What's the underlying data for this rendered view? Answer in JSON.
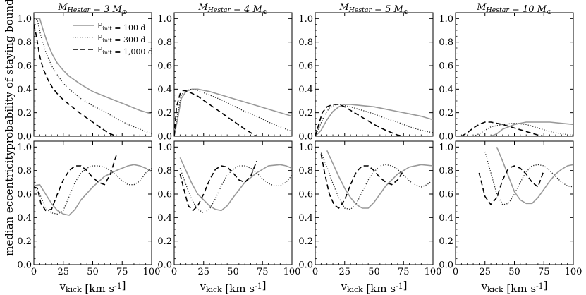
{
  "figure": {
    "xlabel": "v_kick [km s^-1]",
    "ylabel_top": "probability of staying bound",
    "ylabel_bottom": "median eccentricity"
  },
  "legend": {
    "entries": [
      {
        "label": "P_init = 100 d",
        "style": "solid",
        "color": "#999999"
      },
      {
        "label": "P_init = 300 d",
        "style": "dotted",
        "color": "#333333"
      },
      {
        "label": "P_init = 1,000 d",
        "style": "dashed",
        "color": "#000000"
      }
    ]
  },
  "chart_data": [
    {
      "type": "line",
      "row": "top",
      "panel": 0,
      "title": "M_Hestar = 3 M_⊙",
      "xlim": [
        0,
        100
      ],
      "ylim": [
        0,
        1.05
      ],
      "xticks": [
        0,
        25,
        50,
        75,
        100
      ],
      "yticks": [
        0.0,
        0.2,
        0.4,
        0.6,
        0.8,
        1.0
      ],
      "xlabel": "v_kick [km s^-1]",
      "ylabel": "probability of staying bound",
      "series": [
        {
          "name": "P_init = 100 d",
          "style": "solid",
          "x": [
            0,
            5,
            8,
            12,
            16,
            20,
            25,
            30,
            40,
            50,
            60,
            70,
            80,
            90,
            100
          ],
          "y": [
            1.0,
            1.0,
            0.9,
            0.78,
            0.69,
            0.62,
            0.56,
            0.51,
            0.44,
            0.38,
            0.34,
            0.3,
            0.26,
            0.22,
            0.19
          ]
        },
        {
          "name": "P_init = 300 d",
          "style": "dotted",
          "x": [
            0,
            3,
            6,
            10,
            15,
            20,
            25,
            30,
            40,
            50,
            60,
            70,
            80,
            90,
            100
          ],
          "y": [
            1.0,
            0.99,
            0.85,
            0.72,
            0.6,
            0.52,
            0.45,
            0.4,
            0.32,
            0.26,
            0.21,
            0.15,
            0.1,
            0.06,
            0.02
          ]
        },
        {
          "name": "P_init = 1,000 d",
          "style": "dashed",
          "x": [
            0,
            2,
            5,
            8,
            12,
            16,
            20,
            25,
            30,
            40,
            50,
            60,
            65,
            70,
            75
          ],
          "y": [
            0.95,
            0.86,
            0.68,
            0.57,
            0.48,
            0.41,
            0.36,
            0.31,
            0.27,
            0.19,
            0.12,
            0.05,
            0.02,
            0.0,
            0.0
          ]
        }
      ]
    },
    {
      "type": "line",
      "row": "top",
      "panel": 1,
      "title": "M_Hestar = 4 M_⊙",
      "xlim": [
        0,
        100
      ],
      "ylim": [
        0,
        1.05
      ],
      "xticks": [
        0,
        25,
        50,
        75,
        100
      ],
      "yticks": [
        0.0,
        0.2,
        0.4,
        0.6,
        0.8,
        1.0
      ],
      "series": [
        {
          "name": "P_init = 100 d",
          "style": "solid",
          "x": [
            0,
            3,
            6,
            10,
            15,
            20,
            30,
            40,
            50,
            60,
            70,
            80,
            90,
            100
          ],
          "y": [
            0.0,
            0.15,
            0.32,
            0.38,
            0.4,
            0.4,
            0.38,
            0.35,
            0.32,
            0.29,
            0.26,
            0.23,
            0.2,
            0.17
          ]
        },
        {
          "name": "P_init = 300 d",
          "style": "dotted",
          "x": [
            0,
            3,
            6,
            10,
            15,
            20,
            30,
            40,
            50,
            60,
            70,
            80,
            90,
            100
          ],
          "y": [
            0.0,
            0.2,
            0.35,
            0.39,
            0.4,
            0.39,
            0.35,
            0.31,
            0.26,
            0.21,
            0.17,
            0.12,
            0.08,
            0.04
          ]
        },
        {
          "name": "P_init = 1,000 d",
          "style": "dashed",
          "x": [
            0,
            2,
            5,
            8,
            12,
            16,
            20,
            30,
            40,
            50,
            60,
            70,
            75
          ],
          "y": [
            0.0,
            0.25,
            0.36,
            0.39,
            0.38,
            0.36,
            0.34,
            0.27,
            0.2,
            0.13,
            0.06,
            0.0,
            0.0
          ]
        }
      ]
    },
    {
      "type": "line",
      "row": "top",
      "panel": 2,
      "title": "M_Hestar = 5 M_⊙",
      "xlim": [
        0,
        100
      ],
      "ylim": [
        0,
        1.05
      ],
      "xticks": [
        0,
        25,
        50,
        75,
        100
      ],
      "yticks": [
        0.0,
        0.2,
        0.4,
        0.6,
        0.8,
        1.0
      ],
      "series": [
        {
          "name": "P_init = 100 d",
          "style": "solid",
          "x": [
            0,
            5,
            10,
            15,
            20,
            25,
            30,
            40,
            50,
            60,
            70,
            80,
            90,
            100
          ],
          "y": [
            0.0,
            0.05,
            0.14,
            0.21,
            0.25,
            0.27,
            0.27,
            0.26,
            0.25,
            0.23,
            0.21,
            0.19,
            0.17,
            0.14
          ]
        },
        {
          "name": "P_init = 300 d",
          "style": "dotted",
          "x": [
            0,
            4,
            8,
            12,
            16,
            20,
            25,
            30,
            40,
            50,
            60,
            70,
            80,
            90,
            100
          ],
          "y": [
            0.0,
            0.09,
            0.18,
            0.24,
            0.26,
            0.27,
            0.26,
            0.25,
            0.22,
            0.19,
            0.15,
            0.12,
            0.08,
            0.05,
            0.03
          ]
        },
        {
          "name": "P_init = 1,000 d",
          "style": "dashed",
          "x": [
            0,
            3,
            6,
            10,
            15,
            20,
            25,
            30,
            40,
            50,
            60,
            70,
            75
          ],
          "y": [
            0.0,
            0.1,
            0.2,
            0.25,
            0.27,
            0.27,
            0.25,
            0.22,
            0.16,
            0.1,
            0.05,
            0.01,
            0.0
          ]
        }
      ]
    },
    {
      "type": "line",
      "row": "top",
      "panel": 3,
      "title": "M_Hestar = 10 M_⊙",
      "xlim": [
        0,
        100
      ],
      "ylim": [
        0,
        1.05
      ],
      "xticks": [
        0,
        25,
        50,
        75,
        100
      ],
      "yticks": [
        0.0,
        0.2,
        0.4,
        0.6,
        0.8,
        1.0
      ],
      "series": [
        {
          "name": "P_init = 100 d",
          "style": "solid",
          "x": [
            30,
            35,
            40,
            50,
            60,
            70,
            80,
            90,
            100
          ],
          "y": [
            0.0,
            0.02,
            0.06,
            0.1,
            0.12,
            0.12,
            0.12,
            0.11,
            0.1
          ]
        },
        {
          "name": "P_init = 300 d",
          "style": "dotted",
          "x": [
            15,
            20,
            25,
            30,
            40,
            50,
            60,
            70,
            80,
            90,
            100
          ],
          "y": [
            0.0,
            0.02,
            0.05,
            0.08,
            0.1,
            0.11,
            0.1,
            0.07,
            0.04,
            0.02,
            0.01
          ]
        },
        {
          "name": "P_init = 1,000 d",
          "style": "dashed",
          "x": [
            5,
            10,
            15,
            20,
            25,
            30,
            35,
            40,
            50,
            60,
            70,
            75
          ],
          "y": [
            0.0,
            0.03,
            0.07,
            0.1,
            0.12,
            0.12,
            0.11,
            0.1,
            0.07,
            0.04,
            0.01,
            0.0
          ]
        }
      ]
    },
    {
      "type": "line",
      "row": "bottom",
      "panel": 0,
      "xlim": [
        0,
        100
      ],
      "ylim": [
        0,
        1.05
      ],
      "xticks": [
        0,
        25,
        50,
        75,
        100
      ],
      "yticks": [
        0.0,
        0.2,
        0.4,
        0.6,
        0.8,
        1.0
      ],
      "xlabel": "v_kick [km s^-1]",
      "ylabel": "median eccentricity",
      "series": [
        {
          "name": "P_init = 100 d",
          "style": "solid",
          "x": [
            0,
            5,
            10,
            15,
            20,
            25,
            30,
            35,
            40,
            50,
            60,
            70,
            80,
            85,
            90,
            95,
            100
          ],
          "y": [
            0.67,
            0.68,
            0.6,
            0.52,
            0.46,
            0.43,
            0.42,
            0.47,
            0.55,
            0.66,
            0.75,
            0.8,
            0.84,
            0.85,
            0.84,
            0.82,
            0.79
          ]
        },
        {
          "name": "P_init = 300 d",
          "style": "dotted",
          "x": [
            0,
            5,
            10,
            15,
            20,
            25,
            30,
            35,
            40,
            45,
            50,
            55,
            60,
            65,
            70,
            75,
            80,
            85,
            90,
            95,
            100
          ],
          "y": [
            0.67,
            0.6,
            0.48,
            0.44,
            0.43,
            0.46,
            0.58,
            0.7,
            0.78,
            0.82,
            0.84,
            0.84,
            0.83,
            0.8,
            0.76,
            0.71,
            0.68,
            0.68,
            0.71,
            0.78,
            0.82
          ]
        },
        {
          "name": "P_init = 1,000 d",
          "style": "dashed",
          "x": [
            0,
            3,
            6,
            10,
            15,
            20,
            25,
            30,
            35,
            40,
            45,
            50,
            55,
            60,
            65,
            70
          ],
          "y": [
            0.66,
            0.65,
            0.52,
            0.46,
            0.47,
            0.6,
            0.72,
            0.8,
            0.84,
            0.84,
            0.8,
            0.74,
            0.7,
            0.68,
            0.77,
            0.93
          ]
        }
      ]
    },
    {
      "type": "line",
      "row": "bottom",
      "panel": 1,
      "xlim": [
        0,
        100
      ],
      "ylim": [
        0,
        1.05
      ],
      "xticks": [
        0,
        25,
        50,
        75,
        100
      ],
      "yticks": [
        0.0,
        0.2,
        0.4,
        0.6,
        0.8,
        1.0
      ],
      "series": [
        {
          "name": "P_init = 100 d",
          "style": "solid",
          "x": [
            5,
            10,
            15,
            20,
            25,
            30,
            35,
            40,
            45,
            50,
            60,
            70,
            80,
            90,
            95,
            100
          ],
          "y": [
            0.91,
            0.8,
            0.69,
            0.6,
            0.55,
            0.5,
            0.47,
            0.46,
            0.5,
            0.57,
            0.7,
            0.78,
            0.84,
            0.85,
            0.84,
            0.82
          ]
        },
        {
          "name": "P_init = 300 d",
          "style": "dotted",
          "x": [
            5,
            10,
            15,
            20,
            25,
            30,
            35,
            40,
            45,
            50,
            55,
            60,
            65,
            70,
            75,
            80,
            85,
            90,
            95,
            100
          ],
          "y": [
            0.82,
            0.68,
            0.55,
            0.47,
            0.44,
            0.47,
            0.56,
            0.67,
            0.76,
            0.81,
            0.84,
            0.84,
            0.82,
            0.78,
            0.73,
            0.69,
            0.67,
            0.67,
            0.7,
            0.76
          ]
        },
        {
          "name": "P_init = 1,000 d",
          "style": "dashed",
          "x": [
            5,
            8,
            12,
            16,
            20,
            25,
            30,
            35,
            40,
            45,
            50,
            55,
            60,
            65,
            70
          ],
          "y": [
            0.77,
            0.65,
            0.5,
            0.46,
            0.5,
            0.6,
            0.72,
            0.81,
            0.84,
            0.83,
            0.78,
            0.72,
            0.7,
            0.75,
            0.88
          ]
        }
      ]
    },
    {
      "type": "line",
      "row": "bottom",
      "panel": 2,
      "xlim": [
        0,
        100
      ],
      "ylim": [
        0,
        1.05
      ],
      "xticks": [
        0,
        25,
        50,
        75,
        100
      ],
      "yticks": [
        0.0,
        0.2,
        0.4,
        0.6,
        0.8,
        1.0
      ],
      "series": [
        {
          "name": "P_init = 100 d",
          "style": "solid",
          "x": [
            10,
            15,
            20,
            25,
            30,
            35,
            40,
            45,
            50,
            55,
            60,
            70,
            80,
            90,
            100
          ],
          "y": [
            0.97,
            0.86,
            0.75,
            0.65,
            0.57,
            0.51,
            0.48,
            0.48,
            0.53,
            0.6,
            0.67,
            0.77,
            0.83,
            0.85,
            0.84
          ]
        },
        {
          "name": "P_init = 300 d",
          "style": "dotted",
          "x": [
            5,
            10,
            15,
            20,
            25,
            30,
            35,
            40,
            45,
            50,
            55,
            60,
            65,
            70,
            75,
            80,
            85,
            90,
            95,
            100
          ],
          "y": [
            0.95,
            0.83,
            0.69,
            0.57,
            0.48,
            0.47,
            0.52,
            0.62,
            0.72,
            0.79,
            0.84,
            0.85,
            0.84,
            0.81,
            0.76,
            0.71,
            0.68,
            0.66,
            0.68,
            0.72
          ]
        },
        {
          "name": "P_init = 1,000 d",
          "style": "dashed",
          "x": [
            5,
            8,
            12,
            16,
            20,
            25,
            30,
            35,
            40,
            45,
            50,
            55,
            60,
            65,
            70,
            75
          ],
          "y": [
            0.94,
            0.78,
            0.6,
            0.51,
            0.48,
            0.55,
            0.68,
            0.79,
            0.84,
            0.84,
            0.8,
            0.74,
            0.7,
            0.68,
            0.72,
            0.8
          ]
        }
      ]
    },
    {
      "type": "line",
      "row": "bottom",
      "panel": 3,
      "xlim": [
        0,
        100
      ],
      "ylim": [
        0,
        1.05
      ],
      "xticks": [
        0,
        25,
        50,
        75,
        100
      ],
      "yticks": [
        0.0,
        0.2,
        0.4,
        0.6,
        0.8,
        1.0
      ],
      "series": [
        {
          "name": "P_init = 100 d",
          "style": "solid",
          "x": [
            35,
            40,
            45,
            50,
            55,
            60,
            65,
            70,
            75,
            80,
            85,
            90,
            95,
            100
          ],
          "y": [
            1.0,
            0.88,
            0.75,
            0.62,
            0.55,
            0.52,
            0.52,
            0.57,
            0.64,
            0.71,
            0.77,
            0.81,
            0.84,
            0.85
          ]
        },
        {
          "name": "P_init = 300 d",
          "style": "dotted",
          "x": [
            25,
            30,
            35,
            40,
            45,
            50,
            55,
            60,
            65,
            70,
            75,
            80,
            85,
            90,
            95,
            100
          ],
          "y": [
            0.96,
            0.78,
            0.6,
            0.51,
            0.52,
            0.6,
            0.7,
            0.79,
            0.84,
            0.85,
            0.84,
            0.8,
            0.75,
            0.7,
            0.67,
            0.66
          ]
        },
        {
          "name": "P_init = 1,000 d",
          "style": "dashed",
          "x": [
            20,
            25,
            30,
            35,
            40,
            45,
            50,
            55,
            60,
            65,
            70,
            75
          ],
          "y": [
            0.78,
            0.58,
            0.51,
            0.57,
            0.72,
            0.82,
            0.84,
            0.82,
            0.77,
            0.7,
            0.66,
            0.8
          ]
        }
      ]
    }
  ]
}
